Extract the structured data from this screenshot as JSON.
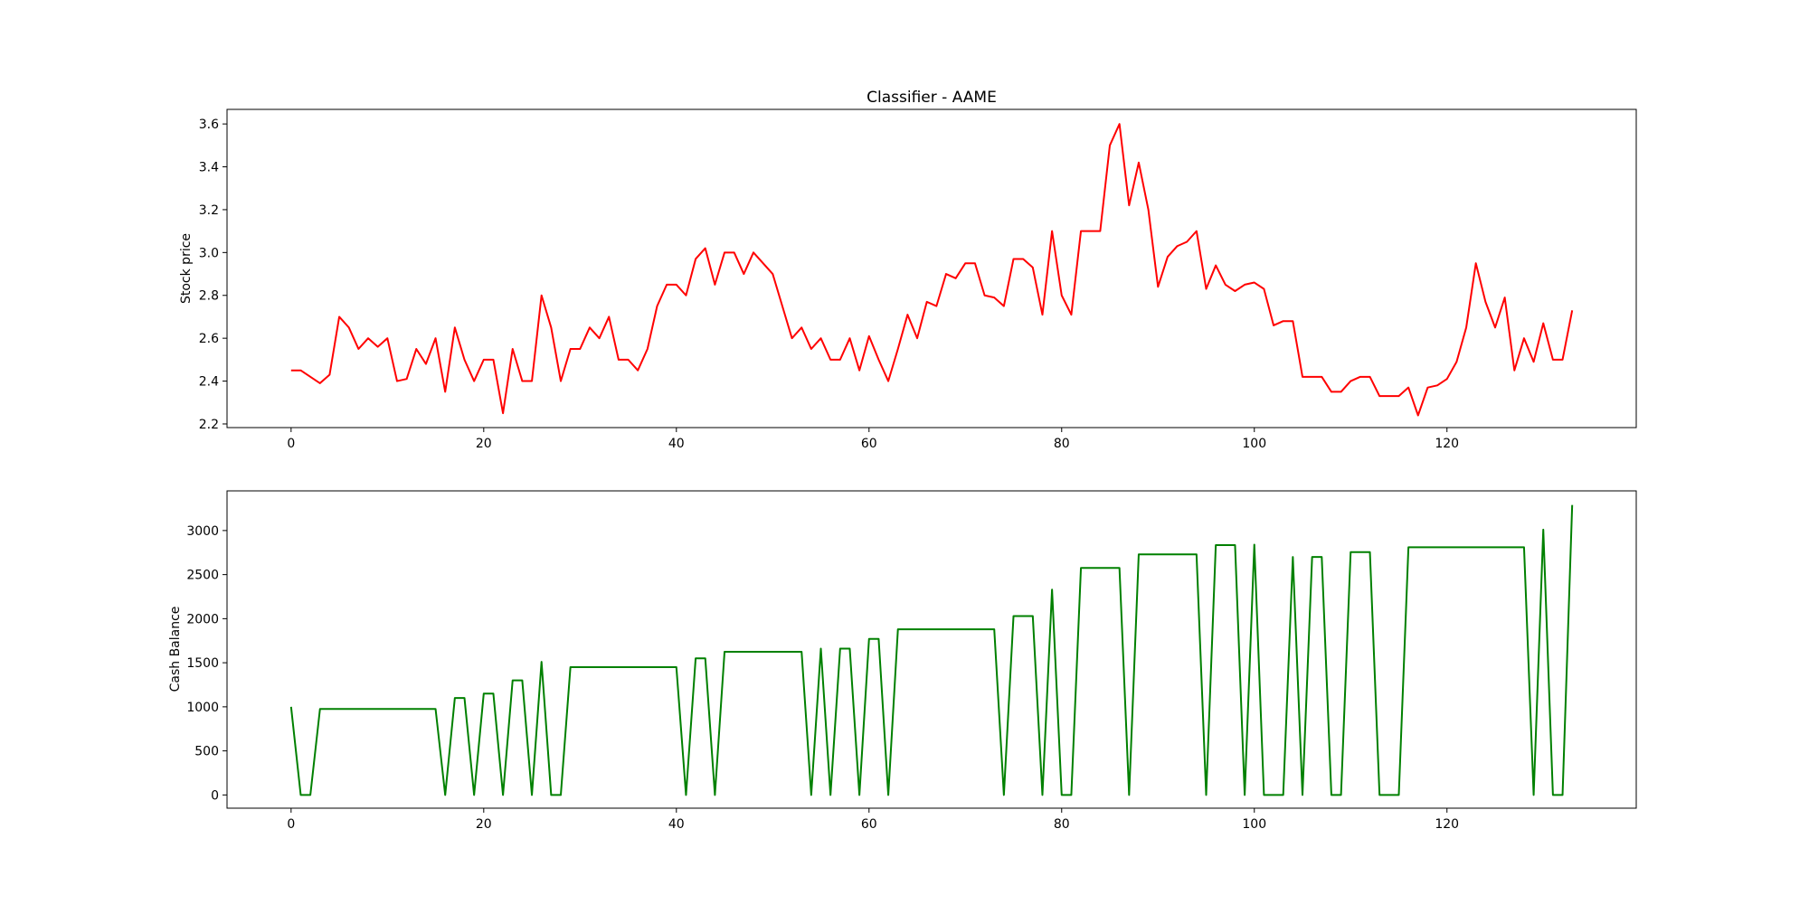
{
  "chart_data": [
    {
      "type": "line",
      "title": "Classifier - AAME",
      "xlabel": "",
      "ylabel": "Stock price",
      "xlim": [
        -6.65,
        139.65
      ],
      "ylim": [
        2.183,
        3.668
      ],
      "xticks": [
        0,
        20,
        40,
        60,
        80,
        100,
        120
      ],
      "yticks": [
        2.2,
        2.4,
        2.6,
        2.8,
        3.0,
        3.2,
        3.4,
        3.6
      ],
      "ytick_labels": [
        "2.2",
        "2.4",
        "2.6",
        "2.8",
        "3.0",
        "3.2",
        "3.4",
        "3.6"
      ],
      "grid": false,
      "series": [
        {
          "color": "#ff0000",
          "values": [
            2.45,
            2.45,
            2.42,
            2.39,
            2.43,
            2.7,
            2.65,
            2.55,
            2.6,
            2.56,
            2.6,
            2.4,
            2.41,
            2.55,
            2.48,
            2.6,
            2.35,
            2.65,
            2.5,
            2.4,
            2.5,
            2.5,
            2.25,
            2.55,
            2.4,
            2.4,
            2.8,
            2.65,
            2.4,
            2.55,
            2.55,
            2.65,
            2.6,
            2.7,
            2.5,
            2.5,
            2.45,
            2.55,
            2.75,
            2.85,
            2.85,
            2.8,
            2.97,
            3.02,
            2.85,
            3.0,
            3.0,
            2.9,
            3.0,
            2.95,
            2.9,
            2.75,
            2.6,
            2.65,
            2.55,
            2.6,
            2.5,
            2.5,
            2.6,
            2.45,
            2.61,
            2.5,
            2.4,
            2.55,
            2.71,
            2.6,
            2.77,
            2.75,
            2.9,
            2.88,
            2.95,
            2.95,
            2.8,
            2.79,
            2.75,
            2.97,
            2.97,
            2.93,
            2.71,
            3.1,
            2.8,
            2.71,
            3.1,
            3.1,
            3.1,
            3.5,
            3.6,
            3.22,
            3.42,
            3.2,
            2.84,
            2.98,
            3.03,
            3.05,
            3.1,
            2.83,
            2.94,
            2.85,
            2.82,
            2.85,
            2.86,
            2.83,
            2.66,
            2.68,
            2.68,
            2.42,
            2.42,
            2.42,
            2.35,
            2.35,
            2.4,
            2.42,
            2.42,
            2.33,
            2.33,
            2.33,
            2.37,
            2.24,
            2.37,
            2.38,
            2.41,
            2.49,
            2.65,
            2.95,
            2.77,
            2.65,
            2.79,
            2.45,
            2.6,
            2.49,
            2.67,
            2.5,
            2.5,
            2.73
          ]
        }
      ]
    },
    {
      "type": "line",
      "title": "",
      "xlabel": "",
      "ylabel": "Cash Balance",
      "xlim": [
        -6.65,
        139.65
      ],
      "ylim": [
        -150,
        3450
      ],
      "xticks": [
        0,
        20,
        40,
        60,
        80,
        100,
        120
      ],
      "yticks": [
        0,
        500,
        1000,
        1500,
        2000,
        2500,
        3000
      ],
      "ytick_labels": [
        "0",
        "500",
        "1000",
        "1500",
        "2000",
        "2500",
        "3000"
      ],
      "grid": false,
      "series": [
        {
          "color": "#008000",
          "values": [
            1000,
            0,
            0,
            975,
            975,
            975,
            975,
            975,
            975,
            975,
            975,
            975,
            975,
            975,
            975,
            975,
            0,
            1100,
            1100,
            0,
            1150,
            1150,
            0,
            1300,
            1300,
            0,
            1510,
            0,
            0,
            1450,
            1450,
            1450,
            1450,
            1450,
            1450,
            1450,
            1450,
            1450,
            1450,
            1450,
            1450,
            0,
            1550,
            1550,
            0,
            1625,
            1625,
            1625,
            1625,
            1625,
            1625,
            1625,
            1625,
            1625,
            0,
            1660,
            0,
            1660,
            1660,
            0,
            1770,
            1770,
            0,
            1880,
            1880,
            1880,
            1880,
            1880,
            1880,
            1880,
            1880,
            1880,
            1880,
            1880,
            0,
            2030,
            2030,
            2030,
            0,
            2330,
            0,
            0,
            2575,
            2575,
            2575,
            2575,
            2575,
            0,
            2730,
            2730,
            2730,
            2730,
            2730,
            2730,
            2730,
            0,
            2835,
            2835,
            2835,
            0,
            2840,
            0,
            0,
            0,
            2700,
            0,
            2700,
            2700,
            0,
            0,
            2755,
            2755,
            2755,
            0,
            0,
            0,
            2810,
            2810,
            2810,
            2810,
            2810,
            2810,
            2810,
            2810,
            2810,
            2810,
            2810,
            2810,
            2810,
            0,
            3010,
            0,
            0,
            3290
          ]
        }
      ]
    }
  ]
}
